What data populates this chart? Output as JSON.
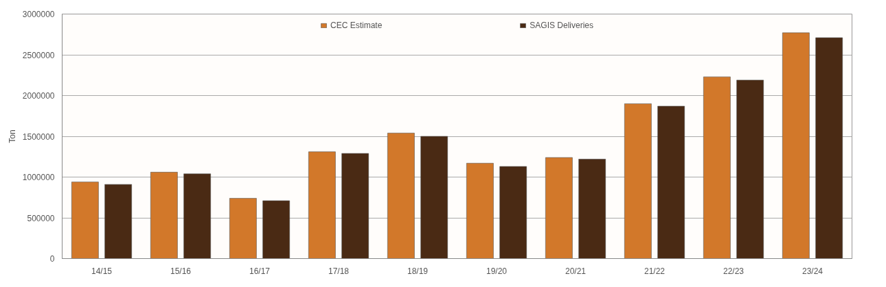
{
  "chart_data": {
    "type": "bar",
    "ylabel": "Ton",
    "categories": [
      "14/15",
      "15/16",
      "16/17",
      "17/18",
      "18/19",
      "19/20",
      "20/21",
      "21/22",
      "22/23",
      "23/24"
    ],
    "series": [
      {
        "name": "CEC Estimate",
        "color": "#d2782a",
        "values": [
          940000,
          1060000,
          740000,
          1310000,
          1540000,
          1170000,
          1240000,
          1900000,
          2230000,
          2770000
        ]
      },
      {
        "name": "SAGIS Deliveries",
        "color": "#4a2a14",
        "values": [
          910000,
          1040000,
          710000,
          1290000,
          1500000,
          1130000,
          1220000,
          1870000,
          2190000,
          2710000
        ]
      }
    ],
    "ylim": [
      0,
      3000000
    ],
    "yticks": [
      0,
      500000,
      1000000,
      1500000,
      2000000,
      2500000,
      3000000
    ],
    "grid": "y",
    "legend": "top"
  }
}
